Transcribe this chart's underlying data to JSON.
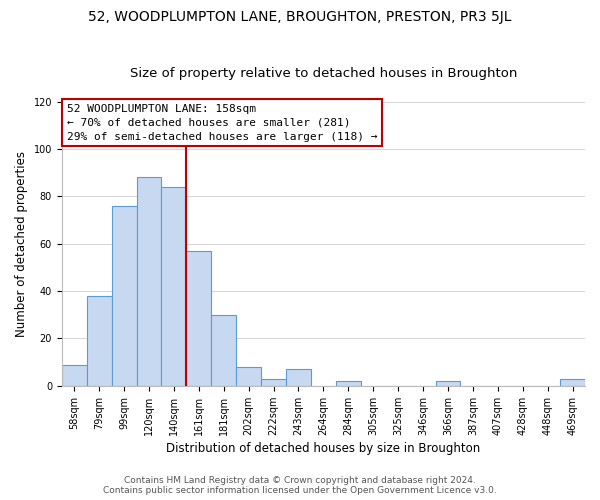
{
  "title": "52, WOODPLUMPTON LANE, BROUGHTON, PRESTON, PR3 5JL",
  "subtitle": "Size of property relative to detached houses in Broughton",
  "xlabel": "Distribution of detached houses by size in Broughton",
  "ylabel": "Number of detached properties",
  "bar_labels": [
    "58sqm",
    "79sqm",
    "99sqm",
    "120sqm",
    "140sqm",
    "161sqm",
    "181sqm",
    "202sqm",
    "222sqm",
    "243sqm",
    "264sqm",
    "284sqm",
    "305sqm",
    "325sqm",
    "346sqm",
    "366sqm",
    "387sqm",
    "407sqm",
    "428sqm",
    "448sqm",
    "469sqm"
  ],
  "bar_values": [
    9,
    38,
    76,
    88,
    84,
    57,
    30,
    8,
    3,
    7,
    0,
    2,
    0,
    0,
    0,
    2,
    0,
    0,
    0,
    0,
    3
  ],
  "bar_color": "#c6d9f1",
  "bar_edge_color": "#5b9bd5",
  "property_line_x": 4.5,
  "property_line_color": "#c00000",
  "ylim": [
    0,
    120
  ],
  "yticks": [
    0,
    20,
    40,
    60,
    80,
    100,
    120
  ],
  "annotation_line1": "52 WOODPLUMPTON LANE: 158sqm",
  "annotation_line2": "← 70% of detached houses are smaller (281)",
  "annotation_line3": "29% of semi-detached houses are larger (118) →",
  "annotation_box_color": "#ffffff",
  "annotation_box_edge": "#c00000",
  "footer_line1": "Contains HM Land Registry data © Crown copyright and database right 2024.",
  "footer_line2": "Contains public sector information licensed under the Open Government Licence v3.0.",
  "background_color": "#ffffff",
  "grid_color": "#d4d4d4",
  "title_fontsize": 10,
  "subtitle_fontsize": 9.5,
  "axis_label_fontsize": 8.5,
  "tick_fontsize": 7,
  "annotation_fontsize": 8,
  "footer_fontsize": 6.5
}
